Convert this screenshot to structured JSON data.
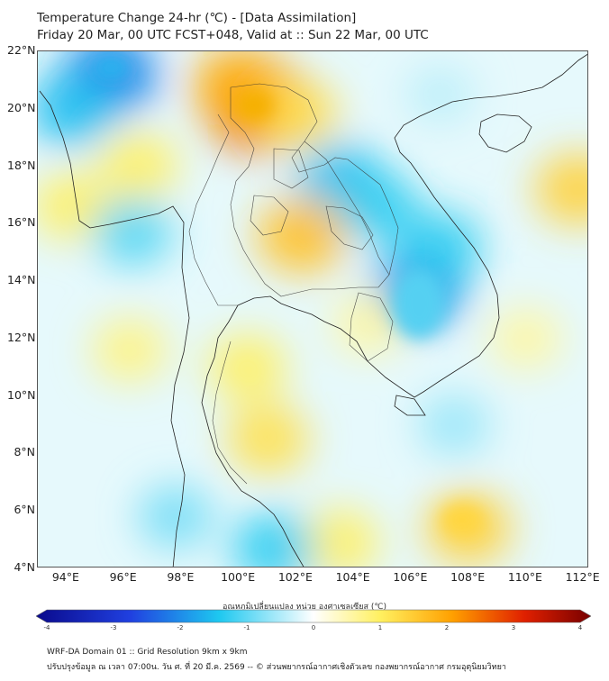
{
  "header": {
    "title_line1": "Temperature Change 24-hr (℃) - [Data Assimilation]",
    "title_line2": "Friday 20 Mar, 00 UTC FCST+048, Valid at :: Sun 22 Mar, 00 UTC"
  },
  "map": {
    "lat_labels": [
      "22°N",
      "20°N",
      "18°N",
      "16°N",
      "14°N",
      "12°N",
      "10°N",
      "8°N",
      "6°N",
      "4°N"
    ],
    "lon_labels": [
      "94°E",
      "96°E",
      "98°E",
      "100°E",
      "102°E",
      "104°E",
      "106°E",
      "108°E",
      "110°E",
      "112°E"
    ],
    "lat_range": [
      4,
      22
    ],
    "lon_range": [
      93,
      112.2
    ],
    "field_anomalies": [
      {
        "lon": 95.5,
        "lat": 21.2,
        "value": -2.0
      },
      {
        "lon": 94.2,
        "lat": 20.0,
        "value": -1.4
      },
      {
        "lon": 100.7,
        "lat": 20.1,
        "value": 2.6
      },
      {
        "lon": 100.0,
        "lat": 20.8,
        "value": 1.8
      },
      {
        "lon": 102.0,
        "lat": 19.8,
        "value": 1.2
      },
      {
        "lon": 96.5,
        "lat": 18.0,
        "value": 1.0
      },
      {
        "lon": 94.2,
        "lat": 16.6,
        "value": 1.0
      },
      {
        "lon": 96.3,
        "lat": 15.7,
        "value": -1.0
      },
      {
        "lon": 111.8,
        "lat": 17.2,
        "value": 1.4
      },
      {
        "lon": 107.0,
        "lat": 20.5,
        "value": -0.4
      },
      {
        "lon": 103.5,
        "lat": 17.5,
        "value": -1.4
      },
      {
        "lon": 104.8,
        "lat": 16.6,
        "value": -1.2
      },
      {
        "lon": 102.2,
        "lat": 15.6,
        "value": 1.6
      },
      {
        "lon": 106.3,
        "lat": 13.8,
        "value": -1.8
      },
      {
        "lon": 107.0,
        "lat": 15.2,
        "value": -1.2
      },
      {
        "lon": 104.5,
        "lat": 12.5,
        "value": 0.6
      },
      {
        "lon": 101.0,
        "lat": 8.5,
        "value": 1.2
      },
      {
        "lon": 100.3,
        "lat": 11.0,
        "value": 1.0
      },
      {
        "lon": 96.2,
        "lat": 11.6,
        "value": 0.8
      },
      {
        "lon": 108.0,
        "lat": 5.4,
        "value": 1.4
      },
      {
        "lon": 103.5,
        "lat": 4.9,
        "value": 1.0
      },
      {
        "lon": 101.2,
        "lat": 4.7,
        "value": -1.2
      },
      {
        "lon": 97.8,
        "lat": 5.8,
        "value": -0.8
      },
      {
        "lon": 107.5,
        "lat": 9.0,
        "value": -0.6
      },
      {
        "lon": 110.0,
        "lat": 12.0,
        "value": 0.6
      }
    ]
  },
  "colorbar": {
    "label": "อุณหภูมิเปลี่ยนแปลง หน่วย องศาเซลเซียส (℃)",
    "min": -4,
    "max": 4,
    "tick_labels": [
      "-4",
      "-3",
      "-2",
      "-1",
      "0",
      "1",
      "2",
      "3",
      "4"
    ],
    "colors": {
      "deep_blue": "#0a0a8c",
      "blue": "#2040e0",
      "cyan": "#1ec8f0",
      "pale": "#ffffff",
      "yellow": "#fff060",
      "orange": "#ffa000",
      "red": "#e02000",
      "dark_red": "#780000"
    }
  },
  "footer": {
    "line1": "WRF-DA Domain 01 :: Grid Resolution 9km x 9km",
    "line2": "ปรับปรุงข้อมูล ณ เวลา 07:00น. วัน ศ. ที่ 20 มี.ค. 2569 -- © ส่วนพยากรณ์อากาศเชิงตัวเลข กองพยากรณ์อากาศ กรมอุตุนิยมวิทยา"
  }
}
